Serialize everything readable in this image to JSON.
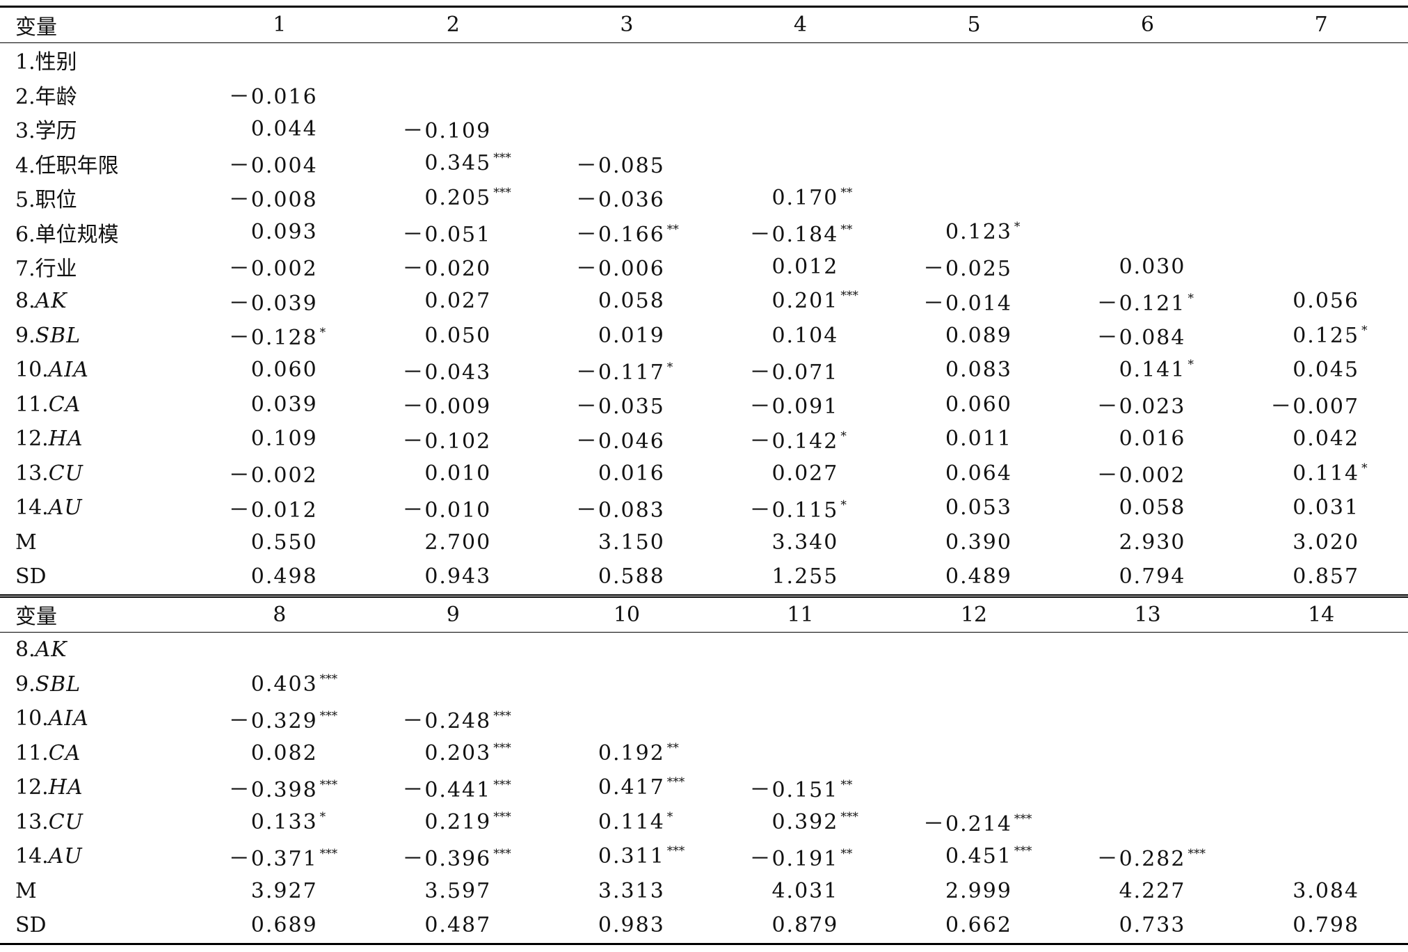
{
  "panels": [
    {
      "header": {
        "label": "变量",
        "columns": [
          "1",
          "2",
          "3",
          "4",
          "5",
          "6",
          "7"
        ]
      },
      "rows": [
        {
          "index": "1.",
          "name": "性别",
          "cells": []
        },
        {
          "index": "2.",
          "name": "年龄",
          "cells": [
            {
              "v": "－0.016"
            }
          ]
        },
        {
          "index": "3.",
          "name": "学历",
          "cells": [
            {
              "v": "0.044"
            },
            {
              "v": "－0.109"
            }
          ]
        },
        {
          "index": "4.",
          "name": "任职年限",
          "cells": [
            {
              "v": "－0.004"
            },
            {
              "v": "0.345",
              "sig": "***"
            },
            {
              "v": "－0.085"
            }
          ]
        },
        {
          "index": "5.",
          "name": "职位",
          "cells": [
            {
              "v": "－0.008"
            },
            {
              "v": "0.205",
              "sig": "***"
            },
            {
              "v": "－0.036"
            },
            {
              "v": "0.170",
              "sig": "**"
            }
          ]
        },
        {
          "index": "6.",
          "name": "单位规模",
          "cells": [
            {
              "v": "0.093"
            },
            {
              "v": "－0.051"
            },
            {
              "v": "－0.166",
              "sig": "**"
            },
            {
              "v": "－0.184",
              "sig": "**"
            },
            {
              "v": "0.123",
              "sig": "*"
            }
          ]
        },
        {
          "index": "7.",
          "name": "行业",
          "cells": [
            {
              "v": "－0.002"
            },
            {
              "v": "－0.020"
            },
            {
              "v": "－0.006"
            },
            {
              "v": "0.012"
            },
            {
              "v": "－0.025"
            },
            {
              "v": "0.030"
            }
          ]
        },
        {
          "index": "8.",
          "name": "AK",
          "italic": true,
          "cells": [
            {
              "v": "－0.039"
            },
            {
              "v": "0.027"
            },
            {
              "v": "0.058"
            },
            {
              "v": "0.201",
              "sig": "***"
            },
            {
              "v": "－0.014"
            },
            {
              "v": "－0.121",
              "sig": "*"
            },
            {
              "v": "0.056"
            }
          ]
        },
        {
          "index": "9.",
          "name": "SBL",
          "italic": true,
          "cells": [
            {
              "v": "－0.128",
              "sig": "*"
            },
            {
              "v": "0.050"
            },
            {
              "v": "0.019"
            },
            {
              "v": "0.104"
            },
            {
              "v": "0.089"
            },
            {
              "v": "－0.084"
            },
            {
              "v": "0.125",
              "sig": "*"
            }
          ]
        },
        {
          "index": "10.",
          "name": "AIA",
          "italic": true,
          "cells": [
            {
              "v": "0.060"
            },
            {
              "v": "－0.043"
            },
            {
              "v": "－0.117",
              "sig": "*"
            },
            {
              "v": "－0.071"
            },
            {
              "v": "0.083"
            },
            {
              "v": "0.141",
              "sig": "*"
            },
            {
              "v": "0.045"
            }
          ]
        },
        {
          "index": "11.",
          "name": "CA",
          "italic": true,
          "cells": [
            {
              "v": "0.039"
            },
            {
              "v": "－0.009"
            },
            {
              "v": "－0.035"
            },
            {
              "v": "－0.091"
            },
            {
              "v": "0.060"
            },
            {
              "v": "－0.023"
            },
            {
              "v": "－0.007"
            }
          ]
        },
        {
          "index": "12.",
          "name": "HA",
          "italic": true,
          "cells": [
            {
              "v": "0.109"
            },
            {
              "v": "－0.102"
            },
            {
              "v": "－0.046"
            },
            {
              "v": "－0.142",
              "sig": "*"
            },
            {
              "v": "0.011"
            },
            {
              "v": "0.016"
            },
            {
              "v": "0.042"
            }
          ]
        },
        {
          "index": "13.",
          "name": "CU",
          "italic": true,
          "cells": [
            {
              "v": "－0.002"
            },
            {
              "v": "0.010"
            },
            {
              "v": "0.016"
            },
            {
              "v": "0.027"
            },
            {
              "v": "0.064"
            },
            {
              "v": "－0.002"
            },
            {
              "v": "0.114",
              "sig": "*"
            }
          ]
        },
        {
          "index": "14.",
          "name": "AU",
          "italic": true,
          "cells": [
            {
              "v": "－0.012"
            },
            {
              "v": "－0.010"
            },
            {
              "v": "－0.083"
            },
            {
              "v": "－0.115",
              "sig": "*"
            },
            {
              "v": "0.053"
            },
            {
              "v": "0.058"
            },
            {
              "v": "0.031"
            }
          ]
        },
        {
          "name": "M",
          "cells": [
            {
              "v": "0.550"
            },
            {
              "v": "2.700"
            },
            {
              "v": "3.150"
            },
            {
              "v": "3.340"
            },
            {
              "v": "0.390"
            },
            {
              "v": "2.930"
            },
            {
              "v": "3.020"
            }
          ]
        },
        {
          "name": "SD",
          "cells": [
            {
              "v": "0.498"
            },
            {
              "v": "0.943"
            },
            {
              "v": "0.588"
            },
            {
              "v": "1.255"
            },
            {
              "v": "0.489"
            },
            {
              "v": "0.794"
            },
            {
              "v": "0.857"
            }
          ]
        }
      ]
    },
    {
      "header": {
        "label": "变量",
        "columns": [
          "8",
          "9",
          "10",
          "11",
          "12",
          "13",
          "14"
        ]
      },
      "rows": [
        {
          "index": "8.",
          "name": "AK",
          "italic": true,
          "cells": []
        },
        {
          "index": "9.",
          "name": "SBL",
          "italic": true,
          "cells": [
            {
              "v": "0.403",
              "sig": "***"
            }
          ]
        },
        {
          "index": "10.",
          "name": "AIA",
          "italic": true,
          "cells": [
            {
              "v": "－0.329",
              "sig": "***"
            },
            {
              "v": "－0.248",
              "sig": "***"
            }
          ]
        },
        {
          "index": "11.",
          "name": "CA",
          "italic": true,
          "cells": [
            {
              "v": "0.082"
            },
            {
              "v": "0.203",
              "sig": "***"
            },
            {
              "v": "0.192",
              "sig": "**"
            }
          ]
        },
        {
          "index": "12.",
          "name": "HA",
          "italic": true,
          "cells": [
            {
              "v": "－0.398",
              "sig": "***"
            },
            {
              "v": "－0.441",
              "sig": "***"
            },
            {
              "v": "0.417",
              "sig": "***"
            },
            {
              "v": "－0.151",
              "sig": "**"
            }
          ]
        },
        {
          "index": "13.",
          "name": "CU",
          "italic": true,
          "cells": [
            {
              "v": "0.133",
              "sig": "*"
            },
            {
              "v": "0.219",
              "sig": "***"
            },
            {
              "v": "0.114",
              "sig": "*"
            },
            {
              "v": "0.392",
              "sig": "***"
            },
            {
              "v": "－0.214",
              "sig": "***"
            }
          ]
        },
        {
          "index": "14.",
          "name": "AU",
          "italic": true,
          "cells": [
            {
              "v": "－0.371",
              "sig": "***"
            },
            {
              "v": "－0.396",
              "sig": "***"
            },
            {
              "v": "0.311",
              "sig": "***"
            },
            {
              "v": "－0.191",
              "sig": "**"
            },
            {
              "v": "0.451",
              "sig": "***"
            },
            {
              "v": "－0.282",
              "sig": "***"
            }
          ]
        },
        {
          "name": "M",
          "cells": [
            {
              "v": "3.927"
            },
            {
              "v": "3.597"
            },
            {
              "v": "3.313"
            },
            {
              "v": "4.031"
            },
            {
              "v": "2.999"
            },
            {
              "v": "4.227"
            },
            {
              "v": "3.084"
            }
          ]
        },
        {
          "name": "SD",
          "cells": [
            {
              "v": "0.689"
            },
            {
              "v": "0.487"
            },
            {
              "v": "0.983"
            },
            {
              "v": "0.879"
            },
            {
              "v": "0.662"
            },
            {
              "v": "0.733"
            },
            {
              "v": "0.798"
            }
          ]
        }
      ]
    }
  ]
}
